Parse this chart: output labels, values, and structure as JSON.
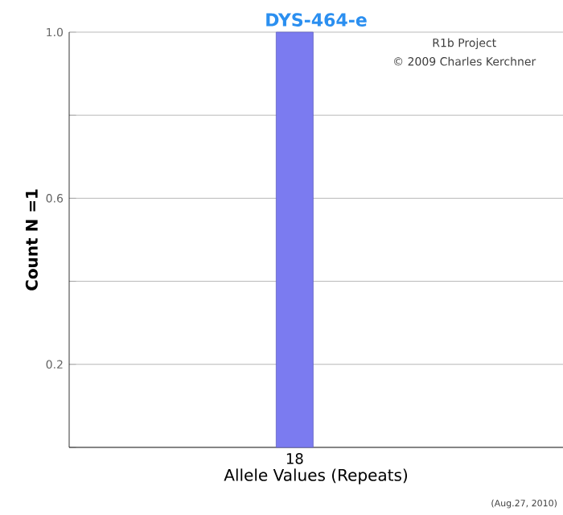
{
  "chart_data": {
    "type": "bar",
    "title": "DYS-464-e",
    "xlabel": "Allele Values (Repeats)",
    "ylabel": "Count N =1",
    "categories": [
      "18"
    ],
    "values": [
      1.0
    ],
    "color": "#7b7bf0",
    "ylim": [
      0,
      1.0
    ],
    "yticks": [
      {
        "value": 0,
        "label": null
      },
      0.2,
      {
        "value": 0.4,
        "label": null
      },
      0.6,
      {
        "value": 0.8,
        "label": null
      },
      {
        "value": 1.0,
        "label": "1.0"
      }
    ],
    "grid": "y",
    "annotations": [
      "R1b Project",
      "© 2009 Charles Kerchner",
      "(Aug.27, 2010)"
    ]
  }
}
